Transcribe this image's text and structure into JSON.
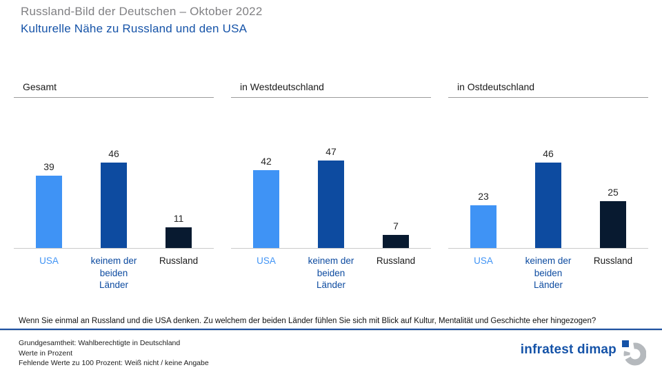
{
  "header": {
    "pretitle": "Russland-Bild der Deutschen – Oktober 2022",
    "title": "Kulturelle Nähe zu Russland und den USA"
  },
  "colors": {
    "pretitle_gray": "#808083",
    "title_blue": "#1553a8",
    "bar_usa": "#3f93f5",
    "bar_none": "#0d4ba0",
    "bar_russia": "#081a30",
    "label_usa": "#3f93f5",
    "label_none": "#0d4ba0",
    "label_russia": "#1a1a1a",
    "divider_blue": "#1b4fa0",
    "brand_blue": "#1553a8"
  },
  "chart_data": {
    "type": "bar",
    "title": "Kulturelle Nähe zu Russland und den USA",
    "categories": [
      "USA",
      "keinem der beiden Länder",
      "Russland"
    ],
    "groups": [
      {
        "label": "Gesamt",
        "values": [
          39,
          46,
          11
        ]
      },
      {
        "label": "in Westdeutschland",
        "values": [
          42,
          47,
          7
        ]
      },
      {
        "label": "in Ostdeutschland",
        "values": [
          23,
          46,
          25
        ]
      }
    ],
    "unit": "Prozent",
    "ylim": [
      0,
      50
    ],
    "value_labels": true,
    "legend_position": "none",
    "grid": false
  },
  "question": "Wenn Sie einmal an Russland und die USA denken. Zu welchem der beiden Länder fühlen Sie sich mit Blick auf Kultur, Mentalität und Geschichte eher hingezogen?",
  "footer": {
    "lines": [
      "Grundgesamtheit: Wahlberechtigte in Deutschland",
      "Werte in Prozent",
      "Fehlende Werte zu 100 Prozent: Weiß nicht / keine Angabe"
    ],
    "brand": "infratest dimap"
  }
}
